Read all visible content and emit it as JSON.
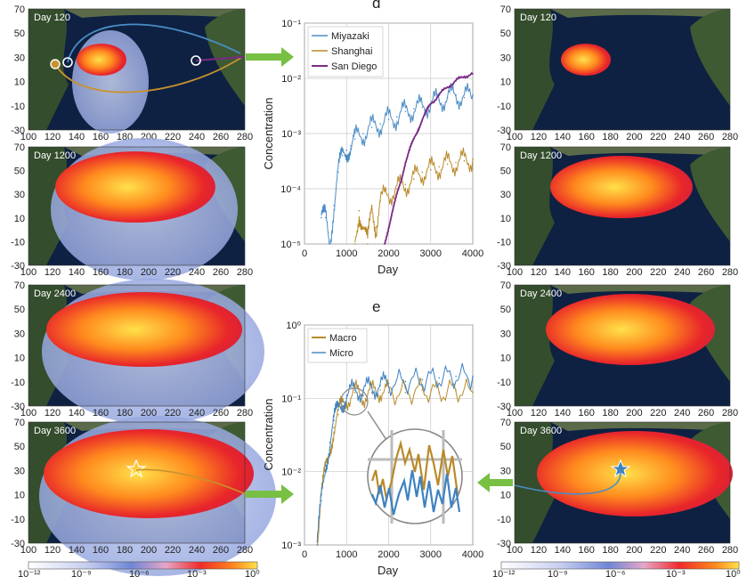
{
  "colors": {
    "ocean": "#0e2142",
    "land": "#2f4a2a",
    "plume_core": "#ffd23a",
    "plume_mid": "#ff6a1a",
    "plume_edge": "#e0232d",
    "plume_faint": "#a9b9e6",
    "miyazaki": "#4a8cc6",
    "shanghai": "#b98a2a",
    "sandiego": "#7a2a86",
    "macro": "#b98a2a",
    "micro": "#3d82c1",
    "arrow": "#77c043"
  },
  "maps": {
    "left": [
      {
        "day_label": "Day 120"
      },
      {
        "day_label": "Day 1200"
      },
      {
        "day_label": "Day 2400"
      },
      {
        "day_label": "Day 3600"
      }
    ],
    "right": [
      {
        "day_label": "Day 120"
      },
      {
        "day_label": "Day 1200"
      },
      {
        "day_label": "Day 2400"
      },
      {
        "day_label": "Day 3600"
      }
    ],
    "x_ticks": [
      "100",
      "120",
      "140",
      "160",
      "180",
      "200",
      "220",
      "240",
      "260",
      "280"
    ],
    "y_ticks": [
      "70",
      "50",
      "30",
      "10",
      "-10",
      "-30"
    ]
  },
  "colorbar": {
    "left_ticks": [
      "10⁻¹²",
      "10⁻⁹",
      "10⁻⁶",
      "10⁻³",
      "10⁰"
    ],
    "right_ticks": [
      "10⁻¹²",
      "10⁻⁹",
      "10⁻⁶",
      "10⁻³",
      "10⁰"
    ]
  },
  "chart_data": [
    {
      "panel": "d",
      "type": "line",
      "xlabel": "Day",
      "ylabel": "Concentration",
      "xlim": [
        0,
        4000
      ],
      "ylim_log10": [
        -5,
        -1
      ],
      "y_scale": "log",
      "x_ticks": [
        "0",
        "1000",
        "2000",
        "3000",
        "4000"
      ],
      "y_ticks": [
        "10⁻⁵",
        "10⁻⁴",
        "10⁻³",
        "10⁻²",
        "10⁻¹"
      ],
      "grid": true,
      "legend": "top-left",
      "series": [
        {
          "name": "Miyazaki",
          "x": [
            400,
            500,
            600,
            700,
            800,
            900,
            1000,
            1100,
            1200,
            1400,
            1600,
            1800,
            2000,
            2200,
            2400,
            2600,
            2800,
            3000,
            3200,
            3400,
            3600,
            3800,
            4000
          ],
          "values": [
            3e-05,
            3e-05,
            1e-05,
            5e-05,
            0.0002,
            0.0004,
            0.0005,
            0.0006,
            0.0008,
            0.001,
            0.0013,
            0.0015,
            0.0018,
            0.002,
            0.0025,
            0.0028,
            0.003,
            0.0035,
            0.004,
            0.0045,
            0.005,
            0.0045,
            0.005
          ]
        },
        {
          "name": "Shanghai",
          "x": [
            1200,
            1300,
            1400,
            1500,
            1600,
            1700,
            1800,
            2000,
            2200,
            2400,
            2600,
            2800,
            3000,
            3200,
            3400,
            3600,
            3800,
            4000
          ],
          "values": [
            1e-05,
            4e-05,
            2e-05,
            1e-05,
            5e-05,
            2e-05,
            6e-05,
            8e-05,
            0.0001,
            0.00012,
            0.00015,
            0.0002,
            0.00022,
            0.00025,
            0.00028,
            0.0003,
            0.00032,
            0.00035
          ]
        },
        {
          "name": "San Diego",
          "x": [
            1900,
            2000,
            2100,
            2200,
            2300,
            2400,
            2500,
            2600,
            2700,
            2800,
            2900,
            3000,
            3200,
            3400,
            3600,
            3800,
            4000
          ],
          "values": [
            1e-05,
            2e-05,
            4e-05,
            8e-05,
            0.00015,
            0.0003,
            0.0005,
            0.0008,
            0.0012,
            0.0018,
            0.0025,
            0.0035,
            0.005,
            0.007,
            0.009,
            0.011,
            0.012
          ]
        }
      ]
    },
    {
      "panel": "e",
      "type": "line",
      "xlabel": "Day",
      "ylabel": "Concentration",
      "xlim": [
        0,
        4000
      ],
      "ylim_log10": [
        -3,
        0
      ],
      "y_scale": "log",
      "x_ticks": [
        "0",
        "1000",
        "2000",
        "3000",
        "4000"
      ],
      "y_ticks": [
        "10⁻³",
        "10⁻²",
        "10⁻¹",
        "10⁰"
      ],
      "grid": true,
      "legend": "top-left",
      "series": [
        {
          "name": "Macro",
          "x": [
            300,
            400,
            500,
            600,
            700,
            800,
            900,
            1000,
            1200,
            1400,
            1600,
            1800,
            2000,
            2400,
            2800,
            3200,
            3600,
            4000
          ],
          "values": [
            0.001,
            0.005,
            0.01,
            0.02,
            0.04,
            0.06,
            0.08,
            0.1,
            0.12,
            0.11,
            0.12,
            0.13,
            0.12,
            0.12,
            0.13,
            0.12,
            0.13,
            0.12
          ]
        },
        {
          "name": "Micro",
          "x": [
            300,
            400,
            500,
            600,
            700,
            800,
            900,
            1000,
            1200,
            1400,
            1600,
            1800,
            2000,
            2400,
            2800,
            3200,
            3600,
            4000
          ],
          "values": [
            0.001,
            0.004,
            0.012,
            0.025,
            0.05,
            0.07,
            0.09,
            0.11,
            0.13,
            0.13,
            0.14,
            0.15,
            0.16,
            0.17,
            0.18,
            0.19,
            0.2,
            0.2
          ]
        }
      ]
    }
  ]
}
